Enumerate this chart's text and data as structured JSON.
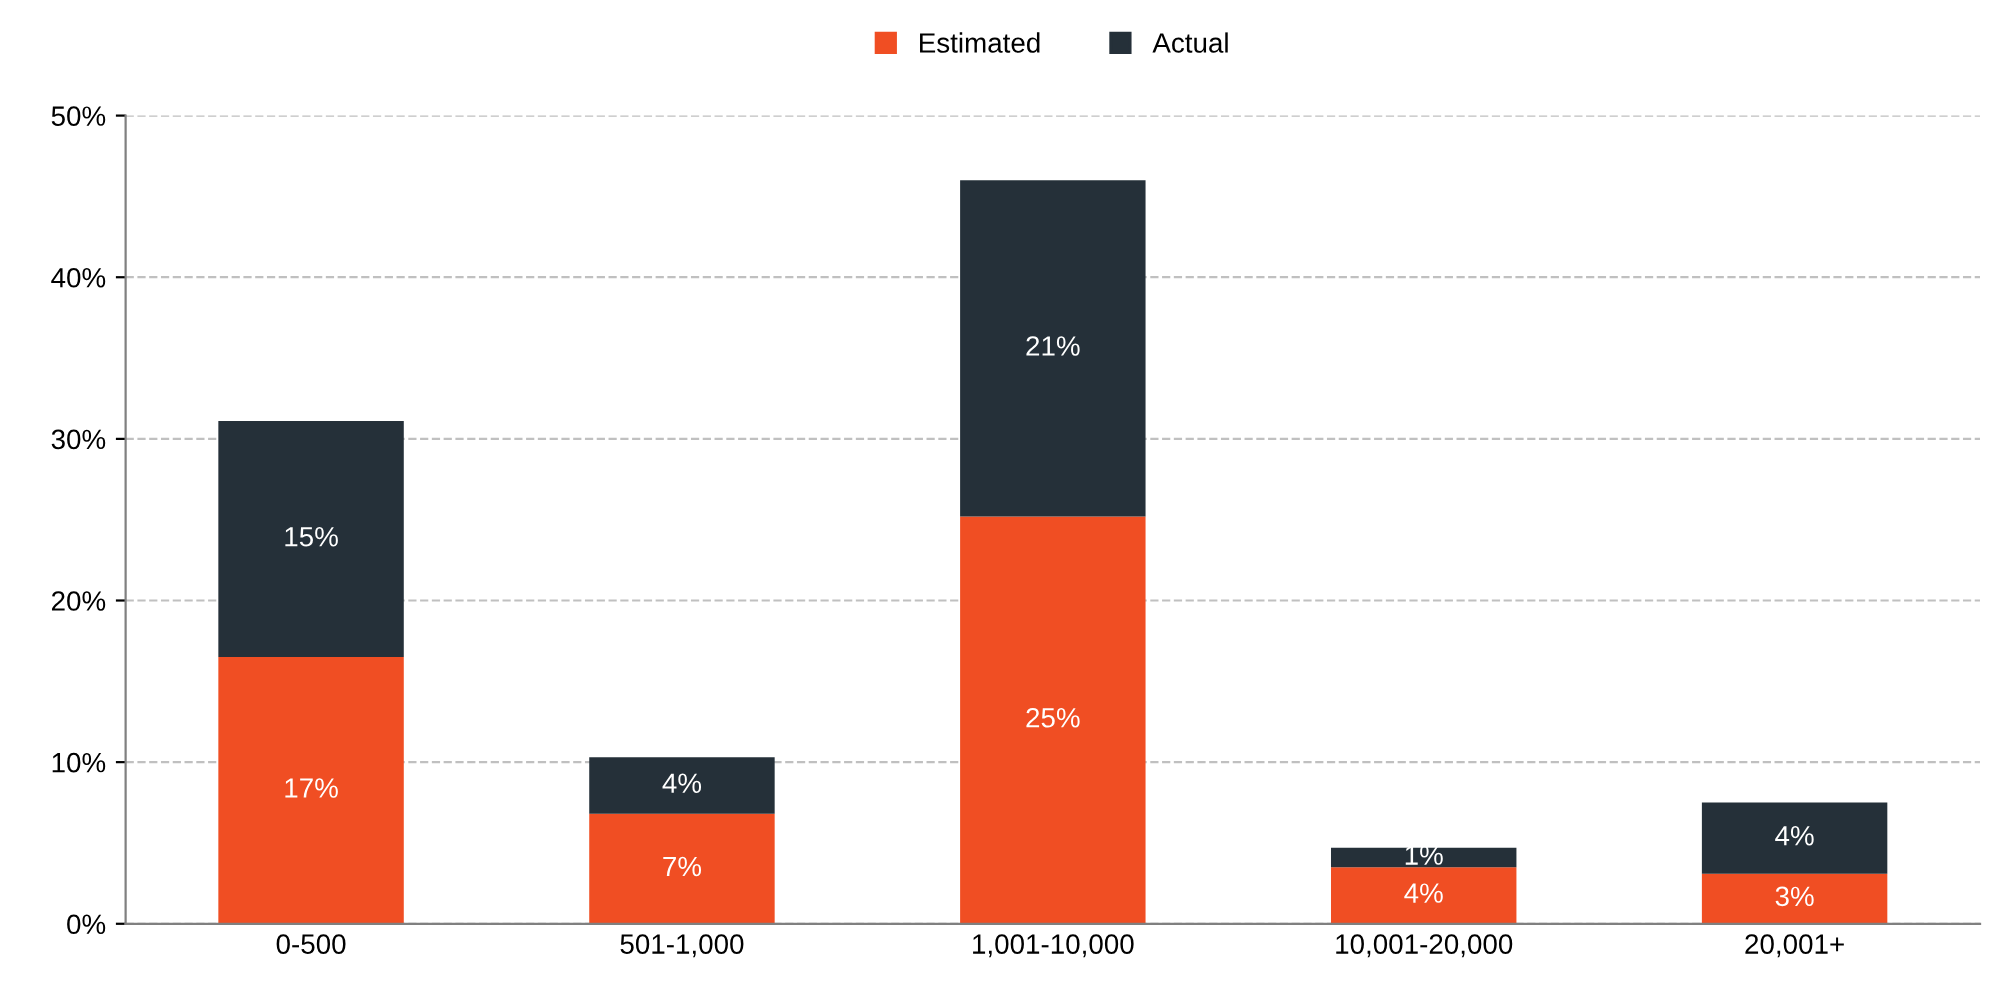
{
  "chart_data": {
    "type": "bar",
    "stacked": true,
    "categories": [
      "0-500",
      "501-1,000",
      "1,001-10,000",
      "10,001-20,000",
      "20,001+"
    ],
    "series": [
      {
        "name": "Estimated",
        "color": "#f04e23",
        "values": [
          16.5,
          6.8,
          25.2,
          3.5,
          3.1
        ],
        "value_labels": [
          "17%",
          "7%",
          "25%",
          "4%",
          "3%"
        ]
      },
      {
        "name": "Actual",
        "color": "#253039",
        "values": [
          14.6,
          3.5,
          20.8,
          1.2,
          4.4
        ],
        "value_labels": [
          "15%",
          "4%",
          "21%",
          "1%",
          "4%"
        ]
      }
    ],
    "ylim": [
      0,
      50
    ],
    "yticks": [
      {
        "value": 0,
        "label": "0%"
      },
      {
        "value": 10,
        "label": "10%"
      },
      {
        "value": 20,
        "label": "20%"
      },
      {
        "value": 30,
        "label": "30%"
      },
      {
        "value": 40,
        "label": "40%"
      },
      {
        "value": 50,
        "label": "50%"
      }
    ],
    "grid": "y",
    "legend": "top"
  }
}
